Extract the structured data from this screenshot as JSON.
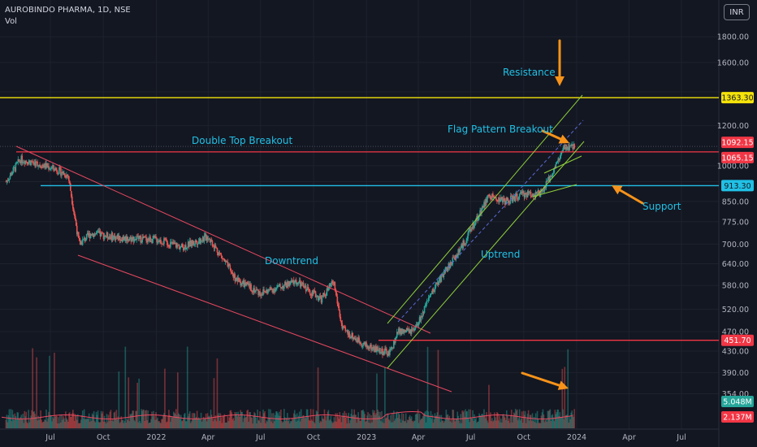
{
  "header": {
    "symbol_line": "AUROBINDO PHARMA, 1D, NSE",
    "indicator": "Vol"
  },
  "currency_button": "INR",
  "colors": {
    "background": "#131722",
    "resistance": "#f5e30a",
    "red_level": "#f23645",
    "support": "#21c0e5",
    "channel_red": "#e8485f",
    "channel_green": "#8fcf3a",
    "annotation": "#21c0e5",
    "arrow": "#f7931a",
    "up_candle": "#26a69a",
    "down_candle": "#ef5350"
  },
  "chart_data": {
    "type": "candlestick",
    "y_scale": "log",
    "y_ticks": [
      354,
      390,
      430,
      470,
      520,
      580,
      640,
      700,
      775,
      850,
      930,
      1000,
      1200,
      1400,
      1600,
      1800
    ],
    "y_tick_labels": [
      "354.00",
      "390.00",
      "430.00",
      "470.00",
      "520.00",
      "580.00",
      "640.00",
      "700.00",
      "775.00",
      "850.00",
      "930.00",
      "1000.00",
      "1200.00",
      "1400.00",
      "1600.00",
      "1800.00"
    ],
    "x_ticks": [
      "Jul",
      "Oct",
      "2022",
      "Apr",
      "Jul",
      "Oct",
      "2023",
      "Apr",
      "Jul",
      "Oct",
      "2024",
      "Apr",
      "Jul"
    ],
    "price_path": [
      [
        "2021-04-15",
        930
      ],
      [
        "2021-05-10",
        1030
      ],
      [
        "2021-06-15",
        1005
      ],
      [
        "2021-07-10",
        985
      ],
      [
        "2021-08-01",
        955
      ],
      [
        "2021-08-20",
        700
      ],
      [
        "2021-09-10",
        735
      ],
      [
        "2021-11-01",
        720
      ],
      [
        "2022-01-01",
        715
      ],
      [
        "2022-02-15",
        690
      ],
      [
        "2022-04-01",
        725
      ],
      [
        "2022-05-20",
        595
      ],
      [
        "2022-07-01",
        560
      ],
      [
        "2022-09-01",
        590
      ],
      [
        "2022-10-15",
        545
      ],
      [
        "2022-11-05",
        590
      ],
      [
        "2022-11-20",
        475
      ],
      [
        "2023-01-01",
        440
      ],
      [
        "2023-02-10",
        425
      ],
      [
        "2023-02-25",
        470
      ],
      [
        "2023-03-25",
        470
      ],
      [
        "2023-05-01",
        580
      ],
      [
        "2023-06-15",
        690
      ],
      [
        "2023-08-01",
        870
      ],
      [
        "2023-09-01",
        850
      ],
      [
        "2023-10-01",
        880
      ],
      [
        "2023-11-01",
        880
      ],
      [
        "2023-12-10",
        1080
      ],
      [
        "2023-12-28",
        1092
      ]
    ],
    "levels": [
      {
        "label": "Resistance",
        "value": 1363.3,
        "price_label": "1363.30",
        "color": "#f5e30a"
      },
      {
        "label": "Double Top Breakout",
        "value": 1065.15,
        "price_label": "1065.15",
        "color": "#f23645"
      },
      {
        "label": "Support",
        "value": 913.3,
        "price_label": "913.30",
        "color": "#21c0e5"
      },
      {
        "label": "",
        "value": 451.7,
        "price_label": "451.70",
        "color": "#f23645"
      }
    ],
    "last_price": {
      "value": 1092.15,
      "label": "1092.15"
    },
    "volume_labels": [
      {
        "label": "5.048M",
        "color": "#26a69a"
      },
      {
        "label": "2.137M",
        "color": "#f23645"
      }
    ],
    "annotations": {
      "resistance": "Resistance",
      "double_top": "Double Top Breakout",
      "flag": "Flag Pattern Breakout",
      "support": "Support",
      "downtrend": "Downtrend",
      "uptrend": "Uptrend"
    }
  }
}
